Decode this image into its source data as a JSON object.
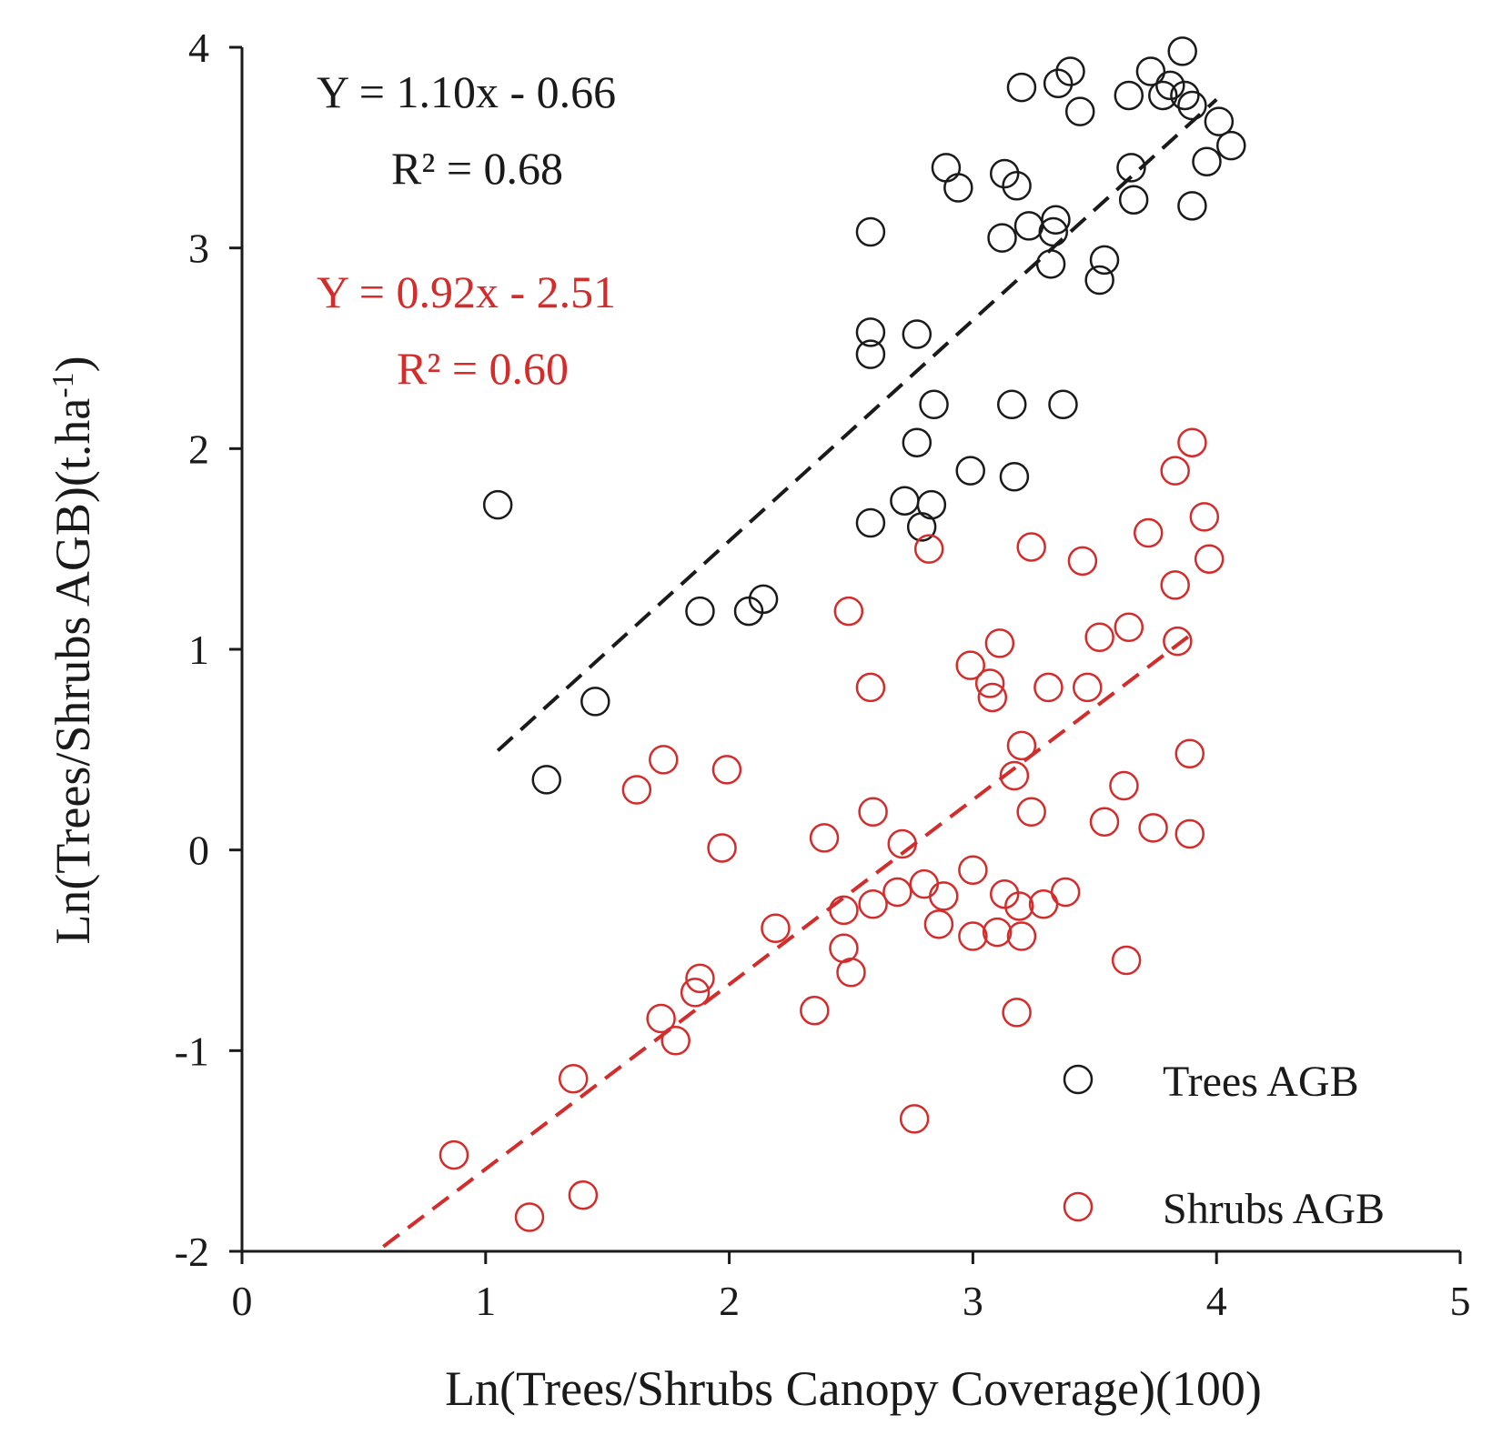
{
  "chart_data": {
    "type": "scatter",
    "xlabel": "Ln(Trees/Shrubs Canopy Coverage)(100)",
    "ylabel": "Ln(Trees/Shrubs AGB)(t.ha",
    "ylabel_sup": "-1",
    "ylabel_close": ")",
    "xlim": [
      0,
      5
    ],
    "ylim": [
      -2,
      4
    ],
    "x_ticks": [
      "0",
      "1",
      "2",
      "3",
      "4",
      "5"
    ],
    "y_ticks": [
      "-2",
      "-1",
      "0",
      "1",
      "2",
      "3",
      "4"
    ],
    "grid": false,
    "legend_position": "bottom-right",
    "series": [
      {
        "name": "Trees AGB",
        "color": "#1a1a1a",
        "marker": "open-circle",
        "equation": "Y = 1.10x - 0.66",
        "r2_label": "R² = 0.68",
        "fit": {
          "slope": 1.1,
          "intercept": -0.66,
          "x_range": [
            1.05,
            4.0
          ]
        },
        "points": [
          [
            1.05,
            1.72
          ],
          [
            1.25,
            0.35
          ],
          [
            1.45,
            0.74
          ],
          [
            1.88,
            1.19
          ],
          [
            2.08,
            1.19
          ],
          [
            2.14,
            1.25
          ],
          [
            2.58,
            3.08
          ],
          [
            2.58,
            2.58
          ],
          [
            2.58,
            2.47
          ],
          [
            2.58,
            1.63
          ],
          [
            2.72,
            1.74
          ],
          [
            2.77,
            2.57
          ],
          [
            2.77,
            2.03
          ],
          [
            2.79,
            1.61
          ],
          [
            2.83,
            1.72
          ],
          [
            2.84,
            2.22
          ],
          [
            2.89,
            3.4
          ],
          [
            2.94,
            3.3
          ],
          [
            2.99,
            1.89
          ],
          [
            3.12,
            3.05
          ],
          [
            3.13,
            3.37
          ],
          [
            3.16,
            2.22
          ],
          [
            3.17,
            1.86
          ],
          [
            3.18,
            3.31
          ],
          [
            3.2,
            3.8
          ],
          [
            3.23,
            3.11
          ],
          [
            3.32,
            2.92
          ],
          [
            3.33,
            3.08
          ],
          [
            3.34,
            3.14
          ],
          [
            3.35,
            3.82
          ],
          [
            3.37,
            2.22
          ],
          [
            3.4,
            3.88
          ],
          [
            3.44,
            3.68
          ],
          [
            3.52,
            2.84
          ],
          [
            3.54,
            2.94
          ],
          [
            3.64,
            3.76
          ],
          [
            3.65,
            3.4
          ],
          [
            3.66,
            3.24
          ],
          [
            3.73,
            3.88
          ],
          [
            3.78,
            3.76
          ],
          [
            3.81,
            3.81
          ],
          [
            3.86,
            3.98
          ],
          [
            3.87,
            3.76
          ],
          [
            3.9,
            3.71
          ],
          [
            3.9,
            3.21
          ],
          [
            3.96,
            3.43
          ],
          [
            4.01,
            3.63
          ],
          [
            4.06,
            3.51
          ]
        ]
      },
      {
        "name": "Shrubs AGB",
        "color": "#d42b2b",
        "marker": "open-circle",
        "equation": "Y = 0.92x - 2.51",
        "r2_label": "R² = 0.60",
        "fit": {
          "slope": 0.92,
          "intercept": -2.51,
          "x_range": [
            0.58,
            3.9
          ]
        },
        "points": [
          [
            0.87,
            -1.52
          ],
          [
            1.18,
            -1.83
          ],
          [
            1.36,
            -1.14
          ],
          [
            1.4,
            -1.72
          ],
          [
            1.62,
            0.3
          ],
          [
            1.72,
            -0.84
          ],
          [
            1.73,
            0.45
          ],
          [
            1.78,
            -0.95
          ],
          [
            1.86,
            -0.71
          ],
          [
            1.88,
            -0.64
          ],
          [
            1.97,
            0.01
          ],
          [
            1.99,
            0.4
          ],
          [
            2.19,
            -0.39
          ],
          [
            2.35,
            -0.8
          ],
          [
            2.39,
            0.06
          ],
          [
            2.47,
            -0.3
          ],
          [
            2.47,
            -0.49
          ],
          [
            2.49,
            1.19
          ],
          [
            2.5,
            -0.61
          ],
          [
            2.58,
            0.81
          ],
          [
            2.59,
            0.19
          ],
          [
            2.59,
            -0.27
          ],
          [
            2.69,
            -0.21
          ],
          [
            2.71,
            0.03
          ],
          [
            2.76,
            -1.34
          ],
          [
            2.8,
            -0.17
          ],
          [
            2.82,
            1.5
          ],
          [
            2.86,
            -0.37
          ],
          [
            2.88,
            -0.23
          ],
          [
            2.99,
            0.92
          ],
          [
            3.0,
            -0.1
          ],
          [
            3.0,
            -0.43
          ],
          [
            3.07,
            0.83
          ],
          [
            3.08,
            0.76
          ],
          [
            3.1,
            -0.41
          ],
          [
            3.11,
            1.03
          ],
          [
            3.13,
            -0.22
          ],
          [
            3.17,
            0.37
          ],
          [
            3.18,
            -0.81
          ],
          [
            3.19,
            -0.28
          ],
          [
            3.2,
            0.52
          ],
          [
            3.2,
            -0.43
          ],
          [
            3.24,
            1.51
          ],
          [
            3.24,
            0.19
          ],
          [
            3.29,
            -0.27
          ],
          [
            3.31,
            0.81
          ],
          [
            3.38,
            -0.21
          ],
          [
            3.45,
            1.44
          ],
          [
            3.47,
            0.81
          ],
          [
            3.52,
            1.06
          ],
          [
            3.54,
            0.14
          ],
          [
            3.62,
            0.32
          ],
          [
            3.63,
            -0.55
          ],
          [
            3.64,
            1.11
          ],
          [
            3.72,
            1.58
          ],
          [
            3.74,
            0.11
          ],
          [
            3.83,
            1.32
          ],
          [
            3.83,
            1.89
          ],
          [
            3.84,
            1.04
          ],
          [
            3.89,
            0.48
          ],
          [
            3.89,
            0.08
          ],
          [
            3.9,
            2.03
          ],
          [
            3.95,
            1.66
          ],
          [
            3.97,
            1.45
          ]
        ]
      }
    ]
  }
}
